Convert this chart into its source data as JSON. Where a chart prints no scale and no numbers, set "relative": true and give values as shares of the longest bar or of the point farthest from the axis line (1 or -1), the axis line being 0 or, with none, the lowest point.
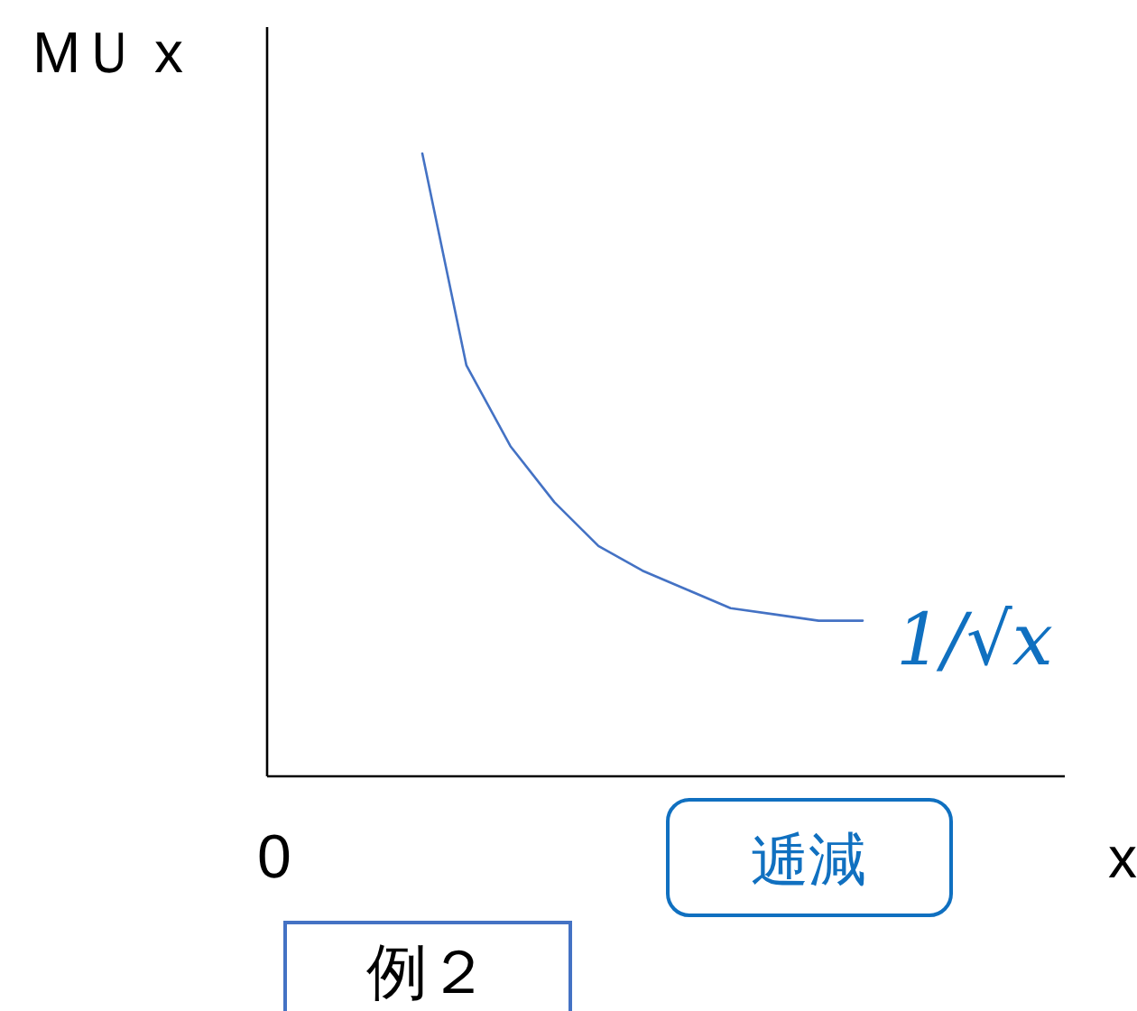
{
  "chart_data": {
    "type": "line",
    "relative": true,
    "ylabel": "MＵ x",
    "xlabel": "x",
    "categories": [
      null,
      null,
      null,
      null,
      null,
      null,
      null,
      null,
      null,
      null,
      null
    ],
    "series": [
      {
        "color": "#4472c4",
        "values": [
          1.0,
          0.66,
          0.53,
          0.44,
          0.37,
          0.33,
          0.3,
          0.27,
          0.26,
          0.25,
          0.25
        ]
      }
    ],
    "annotations": [
      "1/√x",
      "逓減",
      "例２",
      "0"
    ]
  }
}
